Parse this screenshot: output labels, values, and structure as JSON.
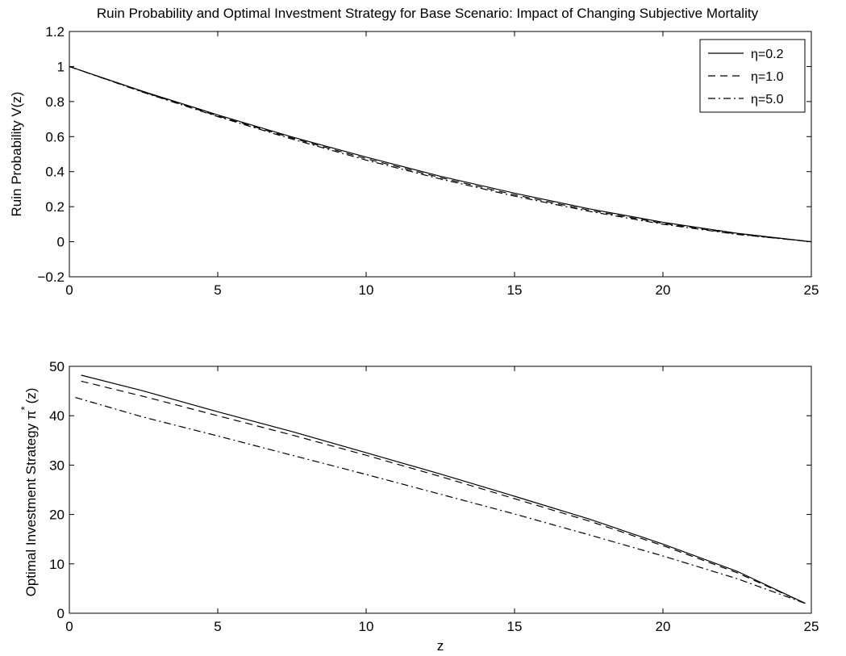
{
  "figure": {
    "title": "Ruin Probability and Optimal Investment Strategy for Base Scenario: Impact of Changing Subjective Mortality"
  },
  "chart_data": [
    {
      "type": "line",
      "ylabel": "Ruin Probability V(z)",
      "xlabel": "",
      "xlim": [
        0,
        25
      ],
      "ylim": [
        -0.2,
        1.2
      ],
      "xticks": [
        0,
        5,
        10,
        15,
        20,
        25
      ],
      "yticks": [
        -0.2,
        0,
        0.2,
        0.4,
        0.6,
        0.8,
        1,
        1.2
      ],
      "x_tick_labels": [
        "0",
        "5",
        "10",
        "15",
        "20",
        "25"
      ],
      "y_tick_labels": [
        "−0.2",
        "0",
        "0.2",
        "0.4",
        "0.6",
        "0.8",
        "1",
        "1.2"
      ],
      "grid": false,
      "legend_position": "top-right",
      "series": [
        {
          "name": "η=0.2",
          "line_style": "solid",
          "x": [
            0,
            2.5,
            5,
            7.5,
            10,
            12.5,
            15,
            17.5,
            20,
            22.5,
            25
          ],
          "y": [
            1.0,
            0.857,
            0.724,
            0.598,
            0.483,
            0.374,
            0.277,
            0.188,
            0.111,
            0.048,
            0.0
          ]
        },
        {
          "name": "η=1.0",
          "line_style": "dashed",
          "x": [
            0,
            2.5,
            5,
            7.5,
            10,
            12.5,
            15,
            17.5,
            20,
            22.5,
            25
          ],
          "y": [
            1.0,
            0.854,
            0.718,
            0.592,
            0.474,
            0.366,
            0.268,
            0.181,
            0.105,
            0.044,
            0.0
          ]
        },
        {
          "name": "η=5.0",
          "line_style": "dashdot",
          "x": [
            0,
            2.5,
            5,
            7.5,
            10,
            12.5,
            15,
            17.5,
            20,
            22.5,
            25
          ],
          "y": [
            1.0,
            0.852,
            0.714,
            0.586,
            0.466,
            0.358,
            0.26,
            0.174,
            0.1,
            0.042,
            0.0
          ]
        }
      ]
    },
    {
      "type": "line",
      "ylabel": "Optimal Investment Strategy π",
      "ylabel_superscript": "*",
      "ylabel_suffix": "(z)",
      "xlabel": "z",
      "xlim": [
        0,
        25
      ],
      "ylim": [
        0,
        50
      ],
      "xticks": [
        0,
        5,
        10,
        15,
        20,
        25
      ],
      "yticks": [
        0,
        10,
        20,
        30,
        40,
        50
      ],
      "x_tick_labels": [
        "0",
        "5",
        "10",
        "15",
        "20",
        "25"
      ],
      "y_tick_labels": [
        "0",
        "10",
        "20",
        "30",
        "40",
        "50"
      ],
      "grid": false,
      "series": [
        {
          "name": "η=0.2",
          "line_style": "solid",
          "x": [
            0.4,
            2.5,
            5,
            7.5,
            10,
            12.5,
            15,
            17.5,
            20,
            22.5,
            24.8
          ],
          "y": [
            48.2,
            45.0,
            40.8,
            36.8,
            32.5,
            28.2,
            23.7,
            19.1,
            14.0,
            8.5,
            2.0
          ]
        },
        {
          "name": "η=1.0",
          "line_style": "dashed",
          "x": [
            0.4,
            2.5,
            5,
            7.5,
            10,
            12.5,
            15,
            17.5,
            20,
            22.5,
            24.8
          ],
          "y": [
            47.0,
            43.9,
            40.0,
            36.1,
            32.0,
            27.7,
            23.2,
            18.7,
            13.7,
            8.2,
            2.0
          ]
        },
        {
          "name": "η=5.0",
          "line_style": "dashdot",
          "x": [
            0.2,
            2.5,
            5,
            7.5,
            10,
            12.5,
            15,
            17.5,
            20,
            22.5,
            24.8
          ],
          "y": [
            43.7,
            39.7,
            35.9,
            32.0,
            28.1,
            24.1,
            20.1,
            15.9,
            11.6,
            7.0,
            2.0
          ]
        }
      ]
    }
  ]
}
